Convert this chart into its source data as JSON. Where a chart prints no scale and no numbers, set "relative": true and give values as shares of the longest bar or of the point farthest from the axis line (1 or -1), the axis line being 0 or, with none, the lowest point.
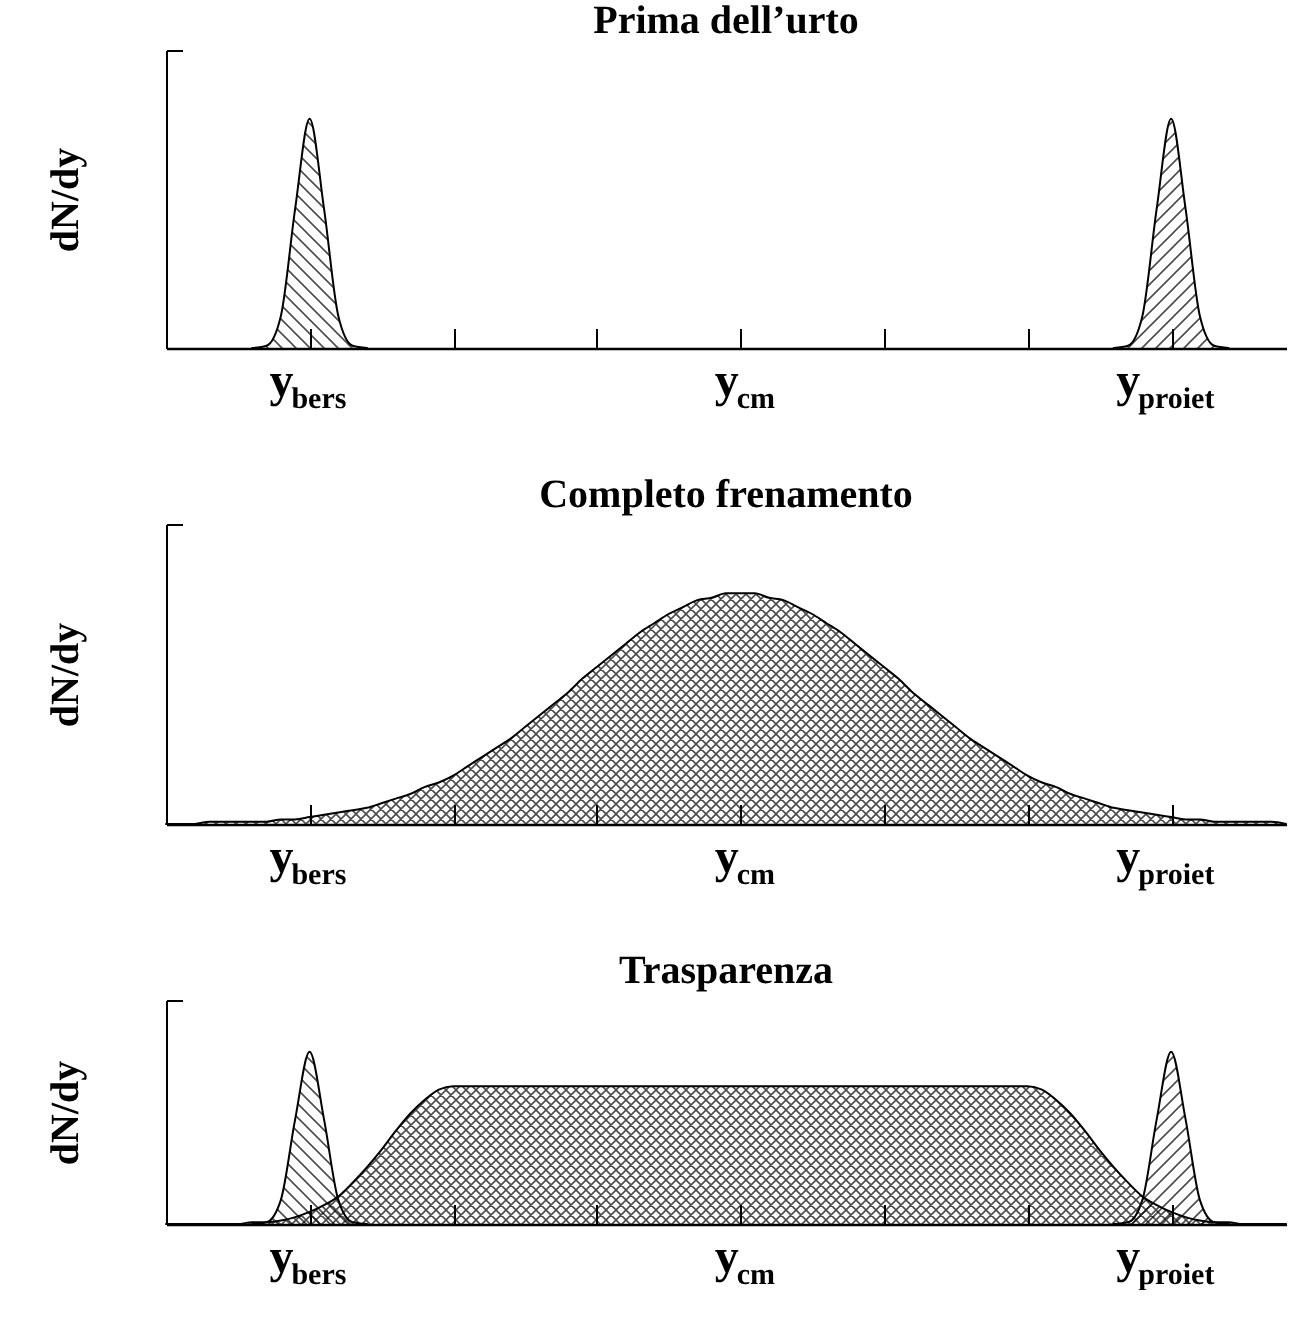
{
  "chart_data": [
    {
      "type": "area",
      "title": "Prima dell’urto",
      "ylabel": "dN/dy",
      "relative": true,
      "tick_labels": "x",
      "categories": [
        null,
        null,
        null,
        null,
        null,
        null,
        null,
        null,
        null,
        null,
        "y$_{bers}$",
        null,
        null,
        null,
        null,
        null,
        null,
        null,
        null,
        null,
        null,
        null,
        null,
        null,
        null,
        null,
        null,
        null,
        null,
        null,
        null,
        null,
        null,
        null,
        null,
        null,
        null,
        null,
        null,
        null,
        "y$_{cm}$",
        null,
        null,
        null,
        null,
        null,
        null,
        null,
        null,
        null,
        null,
        null,
        null,
        null,
        null,
        null,
        null,
        null,
        null,
        null,
        null,
        null,
        null,
        null,
        null,
        null,
        null,
        null,
        null,
        null,
        "y$_{proiet}$",
        null,
        null,
        null,
        null,
        null,
        null,
        null,
        null
      ],
      "series": [
        {
          "color": "#000000",
          "values": [
            null,
            null,
            null,
            null,
            null,
            null,
            0,
            0.01,
            0.14,
            0.61,
            1,
            0.61,
            0.14,
            0.01,
            0,
            null,
            null,
            null,
            null,
            null,
            null,
            null,
            null,
            null,
            null,
            null,
            null,
            null,
            null,
            null,
            null,
            null,
            null,
            null,
            null,
            null,
            null,
            null,
            null,
            null,
            null,
            null,
            null,
            null,
            null,
            null,
            null,
            null,
            null,
            null,
            null,
            null,
            null,
            null,
            null,
            null,
            null,
            null,
            null,
            null,
            null,
            null,
            null,
            null,
            null,
            null,
            null,
            null,
            null,
            null,
            null,
            null,
            null,
            null,
            null,
            null,
            null,
            null,
            null
          ]
        },
        {
          "color": "#000000",
          "values": [
            null,
            null,
            null,
            null,
            null,
            null,
            null,
            null,
            null,
            null,
            null,
            null,
            null,
            null,
            null,
            null,
            null,
            null,
            null,
            null,
            null,
            null,
            null,
            null,
            null,
            null,
            null,
            null,
            null,
            null,
            null,
            null,
            null,
            null,
            null,
            null,
            null,
            null,
            null,
            null,
            null,
            null,
            null,
            null,
            null,
            null,
            null,
            null,
            null,
            null,
            null,
            null,
            null,
            null,
            null,
            null,
            null,
            null,
            null,
            null,
            null,
            null,
            null,
            null,
            null,
            null,
            0,
            0.01,
            0.14,
            0.61,
            1,
            0.61,
            0.14,
            0.01,
            0,
            null,
            null,
            null,
            null
          ]
        }
      ]
    },
    {
      "type": "area",
      "title": "Completo frenamento",
      "ylabel": "dN/dy",
      "relative": true,
      "tick_labels": "x",
      "categories": [
        null,
        null,
        null,
        null,
        null,
        null,
        null,
        null,
        null,
        null,
        "y$_{bers}$",
        null,
        null,
        null,
        null,
        null,
        null,
        null,
        null,
        null,
        null,
        null,
        null,
        null,
        null,
        null,
        null,
        null,
        null,
        null,
        null,
        null,
        null,
        null,
        null,
        null,
        null,
        null,
        null,
        null,
        "y$_{cm}$",
        null,
        null,
        null,
        null,
        null,
        null,
        null,
        null,
        null,
        null,
        null,
        null,
        null,
        null,
        null,
        null,
        null,
        null,
        null,
        null,
        null,
        null,
        null,
        null,
        null,
        null,
        null,
        null,
        null,
        "y$_{proiet}$",
        null,
        null,
        null,
        null,
        null,
        null,
        null,
        null
      ],
      "series": [
        {
          "color": "#000000",
          "values": [
            0,
            0,
            0,
            0.01,
            0.01,
            0.01,
            0.01,
            0.01,
            0.02,
            0.02,
            0.03,
            0.04,
            0.05,
            0.06,
            0.07,
            0.09,
            0.11,
            0.13,
            0.16,
            0.18,
            0.21,
            0.25,
            0.29,
            0.33,
            0.37,
            0.42,
            0.47,
            0.52,
            0.57,
            0.63,
            0.68,
            0.73,
            0.78,
            0.83,
            0.87,
            0.91,
            0.94,
            0.97,
            0.98,
            1,
            1,
            1,
            0.98,
            0.97,
            0.94,
            0.91,
            0.87,
            0.83,
            0.78,
            0.73,
            0.68,
            0.63,
            0.57,
            0.52,
            0.47,
            0.42,
            0.37,
            0.33,
            0.29,
            0.25,
            0.21,
            0.18,
            0.16,
            0.13,
            0.11,
            0.09,
            0.07,
            0.06,
            0.05,
            0.04,
            0.03,
            0.02,
            0.02,
            0.01,
            0.01,
            0.01,
            0.01,
            0.01,
            0
          ]
        }
      ]
    },
    {
      "type": "area",
      "title": "Trasparenza",
      "ylabel": "dN/dy",
      "relative": true,
      "tick_labels": "x",
      "categories": [
        null,
        null,
        null,
        null,
        null,
        null,
        null,
        null,
        null,
        null,
        "y$_{bers}$",
        null,
        null,
        null,
        null,
        null,
        null,
        null,
        null,
        null,
        null,
        null,
        null,
        null,
        null,
        null,
        null,
        null,
        null,
        null,
        null,
        null,
        null,
        null,
        null,
        null,
        null,
        null,
        null,
        null,
        "y$_{cm}$",
        null,
        null,
        null,
        null,
        null,
        null,
        null,
        null,
        null,
        null,
        null,
        null,
        null,
        null,
        null,
        null,
        null,
        null,
        null,
        null,
        null,
        null,
        null,
        null,
        null,
        null,
        null,
        null,
        null,
        "y$_{proiet}$",
        null,
        null,
        null,
        null,
        null,
        null,
        null,
        null
      ],
      "series": [
        {
          "color": "#000000",
          "values": [
            0,
            0,
            0,
            0,
            0,
            0,
            0.01,
            0.01,
            0.02,
            0.04,
            0.07,
            0.11,
            0.16,
            0.24,
            0.33,
            0.43,
            0.54,
            0.64,
            0.72,
            0.78,
            0.8,
            0.8,
            0.8,
            0.8,
            0.8,
            0.8,
            0.8,
            0.8,
            0.8,
            0.8,
            0.8,
            0.8,
            0.8,
            0.8,
            0.8,
            0.8,
            0.8,
            0.8,
            0.8,
            0.8,
            0.8,
            0.8,
            0.8,
            0.8,
            0.8,
            0.8,
            0.8,
            0.8,
            0.8,
            0.8,
            0.8,
            0.8,
            0.8,
            0.8,
            0.8,
            0.8,
            0.8,
            0.8,
            0.8,
            0.8,
            0.8,
            0.78,
            0.72,
            0.64,
            0.54,
            0.43,
            0.33,
            0.24,
            0.16,
            0.11,
            0.07,
            0.04,
            0.02,
            0.01,
            0.01,
            0,
            0,
            0,
            0
          ]
        },
        {
          "color": "#000000",
          "values": [
            null,
            null,
            null,
            null,
            null,
            null,
            0,
            0.01,
            0.14,
            0.61,
            1,
            0.61,
            0.14,
            0.01,
            0,
            null,
            null,
            null,
            null,
            null,
            null,
            null,
            null,
            null,
            null,
            null,
            null,
            null,
            null,
            null,
            null,
            null,
            null,
            null,
            null,
            null,
            null,
            null,
            null,
            null,
            null,
            null,
            null,
            null,
            null,
            null,
            null,
            null,
            null,
            null,
            null,
            null,
            null,
            null,
            null,
            null,
            null,
            null,
            null,
            null,
            null,
            null,
            null,
            null,
            null,
            null,
            null,
            null,
            null,
            null,
            null,
            null,
            null,
            null,
            null,
            null,
            null,
            null,
            null
          ]
        },
        {
          "color": "#000000",
          "values": [
            null,
            null,
            null,
            null,
            null,
            null,
            null,
            null,
            null,
            null,
            null,
            null,
            null,
            null,
            null,
            null,
            null,
            null,
            null,
            null,
            null,
            null,
            null,
            null,
            null,
            null,
            null,
            null,
            null,
            null,
            null,
            null,
            null,
            null,
            null,
            null,
            null,
            null,
            null,
            null,
            null,
            null,
            null,
            null,
            null,
            null,
            null,
            null,
            null,
            null,
            null,
            null,
            null,
            null,
            null,
            null,
            null,
            null,
            null,
            null,
            null,
            null,
            null,
            null,
            null,
            null,
            0,
            0.01,
            0.14,
            0.61,
            1,
            0.61,
            0.14,
            0.01,
            0,
            null,
            null,
            null,
            null
          ]
        }
      ]
    }
  ]
}
